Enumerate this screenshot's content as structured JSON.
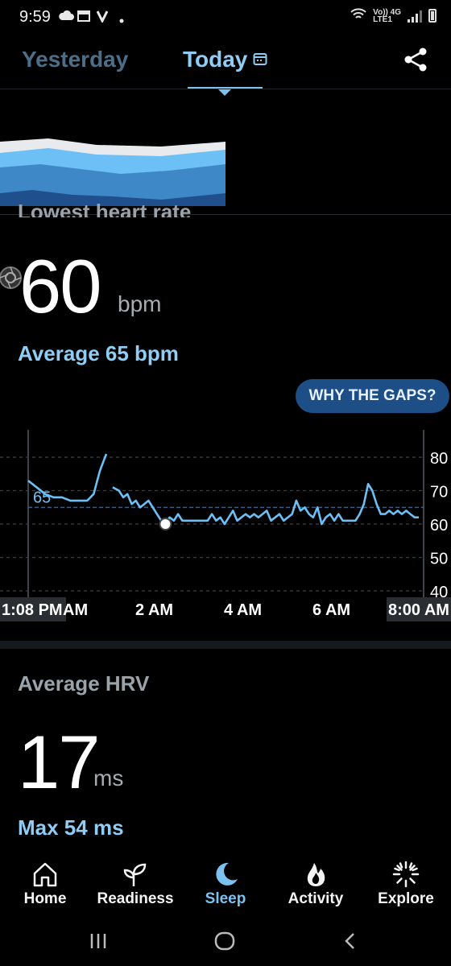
{
  "status_bar": {
    "time": "9:59",
    "network_top": "Vo)) 4G",
    "network_bottom": "LTE1"
  },
  "header": {
    "tabs": [
      {
        "label": "Yesterday",
        "active": false
      },
      {
        "label": "Today",
        "active": true
      }
    ],
    "icons": [
      "calendar-icon",
      "share-icon"
    ]
  },
  "lowest_heart_rate": {
    "label": "Lowest heart rate",
    "value": "60",
    "unit": "bpm",
    "average_text": "Average 65 bpm"
  },
  "why_gaps_button": "WHY THE GAPS?",
  "chart_data": {
    "type": "line",
    "x_tick_labels": [
      "1:08 PM",
      "AM",
      "2 AM",
      "4 AM",
      "6 AM",
      "8:00 AM"
    ],
    "y_tick_labels": [
      "80",
      "70",
      "60",
      "50",
      "40"
    ],
    "ylim": [
      40,
      80
    ],
    "average_line_value": 65,
    "average_label": "65",
    "min_marker": {
      "x": 3.25,
      "y": 60
    },
    "colors": {
      "line": "#6cc0f5",
      "average": "#2f6fa8",
      "grid": "#3a3f45",
      "marker": "#ffffff"
    },
    "series": [
      {
        "segments": [
          [
            [
              0,
              73
            ],
            [
              0.2,
              71
            ],
            [
              0.4,
              69
            ],
            [
              0.6,
              68
            ],
            [
              0.8,
              68
            ],
            [
              1.0,
              67
            ],
            [
              1.2,
              67
            ],
            [
              1.4,
              67
            ],
            [
              1.55,
              69
            ],
            [
              1.7,
              76
            ],
            [
              1.85,
              81
            ]
          ],
          [
            [
              2.0,
              71
            ],
            [
              2.15,
              70
            ],
            [
              2.25,
              68
            ],
            [
              2.35,
              69
            ],
            [
              2.45,
              66
            ],
            [
              2.55,
              67
            ],
            [
              2.65,
              65
            ],
            [
              2.75,
              66
            ],
            [
              2.85,
              67
            ],
            [
              2.95,
              65
            ],
            [
              3.05,
              63
            ],
            [
              3.15,
              61
            ],
            [
              3.25,
              60
            ],
            [
              3.35,
              62
            ],
            [
              3.45,
              61
            ],
            [
              3.55,
              63
            ],
            [
              3.65,
              61
            ],
            [
              3.75,
              61
            ],
            [
              3.85,
              61
            ],
            [
              3.95,
              61
            ],
            [
              4.05,
              61
            ],
            [
              4.15,
              61
            ],
            [
              4.25,
              61
            ],
            [
              4.35,
              63
            ],
            [
              4.45,
              61
            ],
            [
              4.55,
              62
            ],
            [
              4.65,
              60
            ],
            [
              4.75,
              62
            ],
            [
              4.85,
              64
            ],
            [
              4.95,
              61
            ],
            [
              5.05,
              62
            ],
            [
              5.15,
              63
            ],
            [
              5.25,
              62
            ],
            [
              5.35,
              63
            ],
            [
              5.45,
              62
            ],
            [
              5.55,
              63
            ],
            [
              5.65,
              64
            ],
            [
              5.75,
              61
            ],
            [
              5.85,
              62
            ],
            [
              5.95,
              63
            ],
            [
              6.05,
              61
            ],
            [
              6.15,
              62
            ],
            [
              6.25,
              63
            ],
            [
              6.35,
              67
            ],
            [
              6.45,
              64
            ],
            [
              6.55,
              65
            ],
            [
              6.65,
              63
            ],
            [
              6.75,
              62
            ],
            [
              6.85,
              65
            ],
            [
              6.95,
              60
            ],
            [
              7.05,
              62
            ],
            [
              7.15,
              63
            ],
            [
              7.25,
              61
            ],
            [
              7.35,
              63
            ],
            [
              7.45,
              61
            ],
            [
              7.55,
              61
            ],
            [
              7.65,
              61
            ],
            [
              7.75,
              61
            ],
            [
              7.85,
              63
            ],
            [
              7.95,
              66
            ],
            [
              8.05,
              72
            ],
            [
              8.15,
              70
            ],
            [
              8.25,
              66
            ],
            [
              8.35,
              63
            ],
            [
              8.45,
              63
            ],
            [
              8.55,
              64
            ],
            [
              8.65,
              63
            ],
            [
              8.75,
              64
            ],
            [
              8.85,
              63
            ],
            [
              8.95,
              64
            ],
            [
              9.05,
              63
            ],
            [
              9.15,
              62
            ],
            [
              9.25,
              62
            ]
          ]
        ]
      }
    ]
  },
  "sleep_stages_colors": [
    "#e8eaed",
    "#6cc0f5",
    "#3f88c8",
    "#1f4f8c"
  ],
  "average_hrv": {
    "label": "Average HRV",
    "value": "17",
    "unit": "ms",
    "max_text": "Max 54 ms"
  },
  "bottom_nav": {
    "items": [
      {
        "label": "Home",
        "icon": "home-icon",
        "active": false
      },
      {
        "label": "Readiness",
        "icon": "sprout-icon",
        "active": false
      },
      {
        "label": "Sleep",
        "icon": "moon-icon",
        "active": true
      },
      {
        "label": "Activity",
        "icon": "flame-icon",
        "active": false
      },
      {
        "label": "Explore",
        "icon": "burst-icon",
        "active": false
      }
    ]
  },
  "system_nav": [
    "recents-icon",
    "home-circle-icon",
    "back-icon"
  ]
}
